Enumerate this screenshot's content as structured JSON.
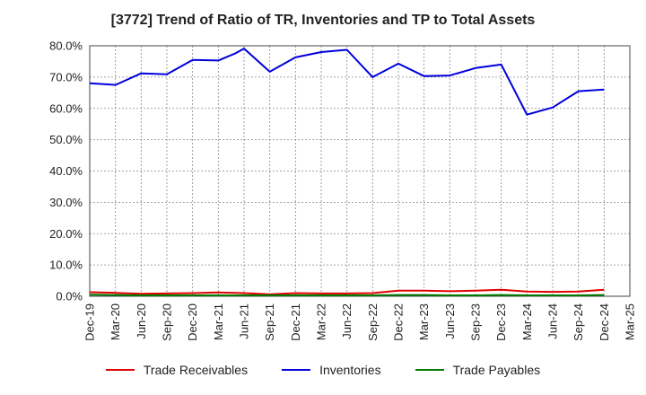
{
  "chart_data": {
    "type": "line",
    "title": "[3772]  Trend of Ratio of TR, Inventories and TP to Total Assets",
    "xlabel": "",
    "ylabel": "",
    "ylim": [
      0,
      80
    ],
    "y_ticks": [
      "0.0%",
      "10.0%",
      "20.0%",
      "30.0%",
      "40.0%",
      "50.0%",
      "60.0%",
      "70.0%",
      "80.0%"
    ],
    "x_ticks": [
      "Dec-19",
      "Mar-20",
      "Jun-20",
      "Sep-20",
      "Dec-20",
      "Mar-21",
      "Jun-21",
      "Sep-21",
      "Dec-21",
      "Mar-22",
      "Jun-22",
      "Sep-22",
      "Dec-22",
      "Mar-23",
      "Jun-23",
      "Sep-23",
      "Dec-23",
      "Mar-24",
      "Jun-24",
      "Sep-24",
      "Dec-24",
      "Mar-25"
    ],
    "grid": true,
    "legend_position": "bottom",
    "series": [
      {
        "name": "Trade Receivables",
        "color": "#e00000",
        "points": [
          [
            "Dec-19",
            1.3
          ],
          [
            "Mar-20",
            1.1
          ],
          [
            "Jun-20",
            0.8
          ],
          [
            "Sep-20",
            0.9
          ],
          [
            "Dec-20",
            1.0
          ],
          [
            "Mar-21",
            1.2
          ],
          [
            "Jun-21",
            1.0
          ],
          [
            "Sep-21",
            0.6
          ],
          [
            "Dec-21",
            1.0
          ],
          [
            "Mar-22",
            0.9
          ],
          [
            "Jun-22",
            0.9
          ],
          [
            "Sep-22",
            1.0
          ],
          [
            "Dec-22",
            1.8
          ],
          [
            "Mar-23",
            1.8
          ],
          [
            "Jun-23",
            1.6
          ],
          [
            "Sep-23",
            1.8
          ],
          [
            "Dec-23",
            2.1
          ],
          [
            "Mar-24",
            1.5
          ],
          [
            "Jun-24",
            1.4
          ],
          [
            "Sep-24",
            1.5
          ],
          [
            "Dec-24",
            2.1
          ]
        ]
      },
      {
        "name": "Inventories",
        "color": "#0000dd",
        "points": [
          [
            "Dec-19",
            68.0
          ],
          [
            "Mar-20",
            67.5
          ],
          [
            "Jun-20",
            71.2
          ],
          [
            "Sep-20",
            70.9
          ],
          [
            "Dec-20",
            75.5
          ],
          [
            "Mar-21",
            75.3
          ],
          [
            "May-21",
            77.6
          ],
          [
            "Jun-21",
            79.1
          ],
          [
            "Sep-21",
            71.7
          ],
          [
            "Dec-21",
            76.3
          ],
          [
            "Mar-22",
            78.0
          ],
          [
            "Jun-22",
            78.7
          ],
          [
            "Sep-22",
            70.0
          ],
          [
            "Dec-22",
            74.3
          ],
          [
            "Mar-23",
            70.3
          ],
          [
            "Jun-23",
            70.5
          ],
          [
            "Sep-23",
            72.9
          ],
          [
            "Dec-23",
            74.0
          ],
          [
            "Mar-24",
            58.0
          ],
          [
            "Jun-24",
            60.3
          ],
          [
            "Sep-24",
            65.5
          ],
          [
            "Dec-24",
            66.0
          ]
        ]
      },
      {
        "name": "Trade Payables",
        "color": "#007a00",
        "points": [
          [
            "Dec-19",
            0.5
          ],
          [
            "Mar-20",
            0.4
          ],
          [
            "Jun-20",
            0.3
          ],
          [
            "Sep-20",
            0.3
          ],
          [
            "Dec-20",
            0.3
          ],
          [
            "Mar-21",
            0.3
          ],
          [
            "Jun-21",
            0.3
          ],
          [
            "Sep-21",
            0.3
          ],
          [
            "Dec-21",
            0.3
          ],
          [
            "Mar-22",
            0.3
          ],
          [
            "Jun-22",
            0.3
          ],
          [
            "Sep-22",
            0.3
          ],
          [
            "Dec-22",
            0.4
          ],
          [
            "Mar-23",
            0.4
          ],
          [
            "Jun-23",
            0.3
          ],
          [
            "Sep-23",
            0.3
          ],
          [
            "Dec-23",
            0.4
          ],
          [
            "Mar-24",
            0.3
          ],
          [
            "Jun-24",
            0.3
          ],
          [
            "Sep-24",
            0.3
          ],
          [
            "Dec-24",
            0.4
          ]
        ]
      }
    ]
  }
}
